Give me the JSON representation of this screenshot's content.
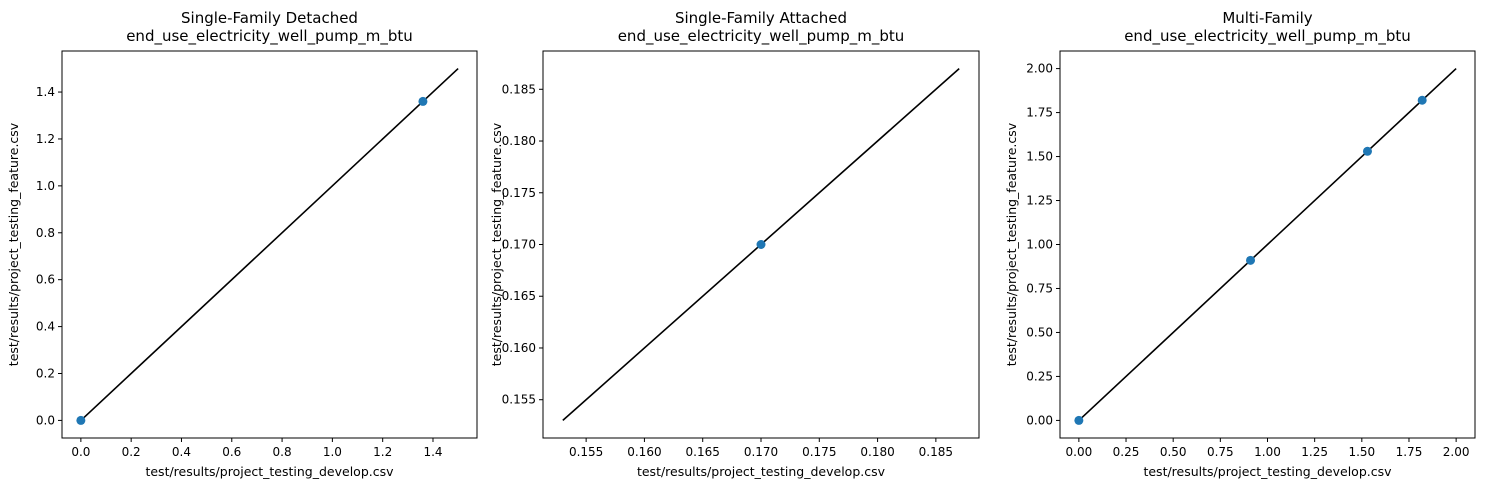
{
  "chart_data": [
    {
      "type": "scatter",
      "title": "Single-Family Detached\nend_use_electricity_well_pump_m_btu",
      "xlabel": "test/results/project_testing_develop.csv",
      "ylabel": "test/results/project_testing_feature.csv",
      "xlim": [
        -0.075,
        1.575
      ],
      "ylim": [
        -0.075,
        1.575
      ],
      "xticks": [
        0.0,
        0.2,
        0.4,
        0.6,
        0.8,
        1.0,
        1.2,
        1.4
      ],
      "yticks": [
        0.0,
        0.2,
        0.4,
        0.6,
        0.8,
        1.0,
        1.2,
        1.4
      ],
      "tick_format": 1,
      "points": [
        [
          0.0,
          0.0
        ],
        [
          1.36,
          1.36
        ]
      ],
      "reference_line": [
        [
          0.0,
          0.0
        ],
        [
          1.5,
          1.5
        ]
      ],
      "point_color": "#1f77b4",
      "line_color": "#000000"
    },
    {
      "type": "scatter",
      "title": "Single-Family Attached\nend_use_electricity_well_pump_m_btu",
      "xlabel": "test/results/project_testing_develop.csv",
      "ylabel": "test/results/project_testing_feature.csv",
      "xlim": [
        0.1513,
        0.1887
      ],
      "ylim": [
        0.1513,
        0.1887
      ],
      "xticks": [
        0.155,
        0.16,
        0.165,
        0.17,
        0.175,
        0.18,
        0.185
      ],
      "yticks": [
        0.155,
        0.16,
        0.165,
        0.17,
        0.175,
        0.18,
        0.185
      ],
      "tick_format": 3,
      "points": [
        [
          0.17,
          0.17
        ]
      ],
      "reference_line": [
        [
          0.153,
          0.153
        ],
        [
          0.187,
          0.187
        ]
      ],
      "point_color": "#1f77b4",
      "line_color": "#000000"
    },
    {
      "type": "scatter",
      "title": "Multi-Family\nend_use_electricity_well_pump_m_btu",
      "xlabel": "test/results/project_testing_develop.csv",
      "ylabel": "test/results/project_testing_feature.csv",
      "xlim": [
        -0.1,
        2.1
      ],
      "ylim": [
        -0.1,
        2.1
      ],
      "xticks": [
        0.0,
        0.25,
        0.5,
        0.75,
        1.0,
        1.25,
        1.5,
        1.75,
        2.0
      ],
      "yticks": [
        0.0,
        0.25,
        0.5,
        0.75,
        1.0,
        1.25,
        1.5,
        1.75,
        2.0
      ],
      "tick_format": 2,
      "points": [
        [
          0.0,
          0.0
        ],
        [
          0.91,
          0.91
        ],
        [
          1.53,
          1.53
        ],
        [
          1.82,
          1.82
        ]
      ],
      "reference_line": [
        [
          0.0,
          0.0
        ],
        [
          2.0,
          2.0
        ]
      ],
      "point_color": "#1f77b4",
      "line_color": "#000000"
    }
  ]
}
